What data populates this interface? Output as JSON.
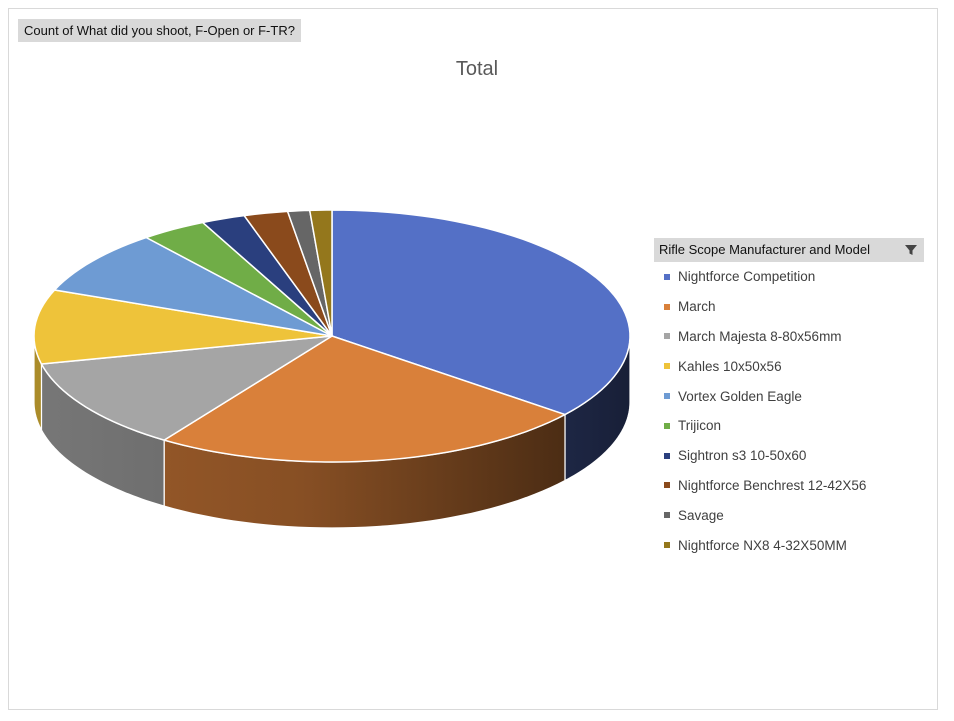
{
  "field_button": {
    "label": "Count of What did you shoot, F-Open or F-TR?"
  },
  "legend": {
    "header": "Rifle Scope Manufacturer and Model",
    "filter_icon": "filter-icon"
  },
  "chart_data": {
    "type": "pie",
    "title": "Total",
    "legend_placement": "right",
    "categories": [
      "Nightforce Competition",
      "March",
      "March Majesta 8-80x56mm",
      "Kahles 10x50x56",
      "Vortex Golden Eagle",
      "Trijicon",
      "Sightron s3 10-50x60",
      "Nightforce Benchrest 12-42X56",
      "Savage",
      "Nightforce NX8 4-32X50MM"
    ],
    "values": [
      30,
      20,
      10,
      8,
      7,
      3,
      2,
      2,
      1,
      1
    ],
    "colors": [
      "#5470c6",
      "#d9803a",
      "#a5a5a5",
      "#eec33a",
      "#6e9bd3",
      "#70ad47",
      "#2a3f7e",
      "#8a4a1c",
      "#666666",
      "#94771c"
    ]
  }
}
